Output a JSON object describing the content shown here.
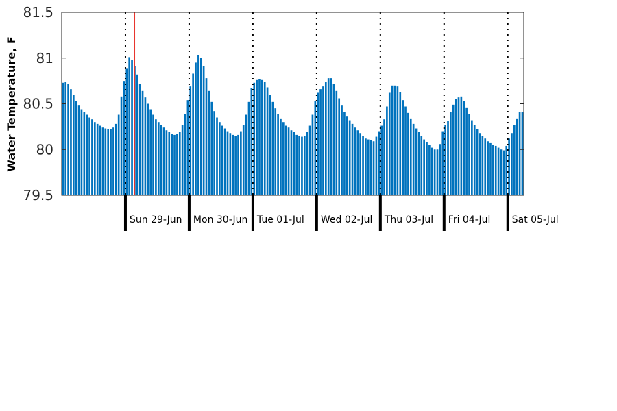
{
  "chart_data": {
    "type": "bar",
    "title": "",
    "xlabel": "",
    "ylabel": "Water Temperature, F",
    "ylim": [
      79.5,
      81.5
    ],
    "yticks": [
      79.5,
      80,
      80.5,
      81,
      81.5
    ],
    "ytick_labels": [
      "79.5",
      "80",
      "80.5",
      "81",
      "81.5"
    ],
    "grid": false,
    "x_unit": "hour",
    "x_start": "2025-06-28T00:00",
    "day_labels": [
      "Sun 29-Jun",
      "Mon 30-Jun",
      "Tue 01-Jul",
      "Wed 02-Jul",
      "Thu 03-Jul",
      "Fri 04-Jul",
      "Sat 05-Jul"
    ],
    "current_marker_hour": 27,
    "colors": {
      "bar": "#0072bd",
      "current_marker": "#e8312a",
      "axis": "#000000"
    },
    "series": [
      {
        "values": [
          80.73,
          80.74,
          80.72,
          80.66,
          80.6,
          80.53,
          80.48,
          80.44,
          80.41,
          80.38,
          80.35,
          80.33,
          80.3,
          80.28,
          80.26,
          80.24,
          80.23,
          80.22,
          80.22,
          80.24,
          80.28,
          80.38,
          80.58,
          80.75,
          80.89,
          81.01,
          80.98,
          80.91,
          80.82,
          80.72,
          80.64,
          80.57,
          80.5,
          80.44,
          80.38,
          80.33,
          80.3,
          80.27,
          80.24,
          80.21,
          80.19,
          80.17,
          80.16,
          80.17,
          80.19,
          80.27,
          80.39,
          80.54,
          80.69,
          80.83,
          80.95,
          81.03,
          81.0,
          80.91,
          80.78,
          80.64,
          80.52,
          80.42,
          80.35,
          80.3,
          80.26,
          80.23,
          80.2,
          80.18,
          80.16,
          80.15,
          80.16,
          80.2,
          80.27,
          80.38,
          80.52,
          80.67,
          80.73,
          80.76,
          80.77,
          80.76,
          80.74,
          80.68,
          80.6,
          80.52,
          80.45,
          80.39,
          80.34,
          80.3,
          80.26,
          80.24,
          80.21,
          80.19,
          80.16,
          80.15,
          80.14,
          80.15,
          80.19,
          80.26,
          80.38,
          80.53,
          80.62,
          80.66,
          80.69,
          80.74,
          80.78,
          80.78,
          80.72,
          80.64,
          80.56,
          80.48,
          80.41,
          80.36,
          80.32,
          80.28,
          80.24,
          80.21,
          80.18,
          80.15,
          80.12,
          80.11,
          80.1,
          80.09,
          80.14,
          80.2,
          80.26,
          80.33,
          80.47,
          80.62,
          80.7,
          80.7,
          80.69,
          80.63,
          80.54,
          80.47,
          80.4,
          80.34,
          80.28,
          80.23,
          80.19,
          80.15,
          80.11,
          80.08,
          80.05,
          80.02,
          80.0,
          80.0,
          80.06,
          80.2,
          80.27,
          80.31,
          80.41,
          80.49,
          80.55,
          80.57,
          80.58,
          80.53,
          80.46,
          80.39,
          80.32,
          80.27,
          80.22,
          80.18,
          80.15,
          80.12,
          80.09,
          80.07,
          80.05,
          80.04,
          80.02,
          80.0,
          79.99,
          80.04,
          80.12,
          80.18,
          80.27,
          80.34,
          80.41,
          80.41
        ]
      }
    ]
  }
}
